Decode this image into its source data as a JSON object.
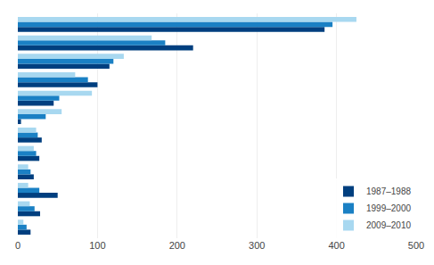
{
  "chart_data": {
    "type": "bar",
    "orientation": "horizontal",
    "categories": [
      null,
      null,
      null,
      null,
      null,
      null,
      null,
      null,
      null,
      null,
      null,
      null
    ],
    "series": [
      {
        "name": "1987–1988",
        "color": "#003f7f",
        "values": [
          385,
          220,
          115,
          100,
          45,
          4,
          30,
          27,
          20,
          50,
          28,
          16
        ]
      },
      {
        "name": "1999–2000",
        "color": "#1a80c4",
        "values": [
          395,
          185,
          120,
          88,
          52,
          35,
          25,
          23,
          16,
          27,
          21,
          11
        ]
      },
      {
        "name": "2009–2010",
        "color": "#a8d8f0",
        "values": [
          425,
          168,
          133,
          72,
          93,
          55,
          23,
          20,
          13,
          13,
          15,
          7
        ]
      }
    ],
    "xlim": [
      0,
      500
    ],
    "xticks": [
      0,
      100,
      200,
      300,
      400,
      500
    ],
    "grid": true,
    "legend": "lower right",
    "tick_labels": "x"
  }
}
